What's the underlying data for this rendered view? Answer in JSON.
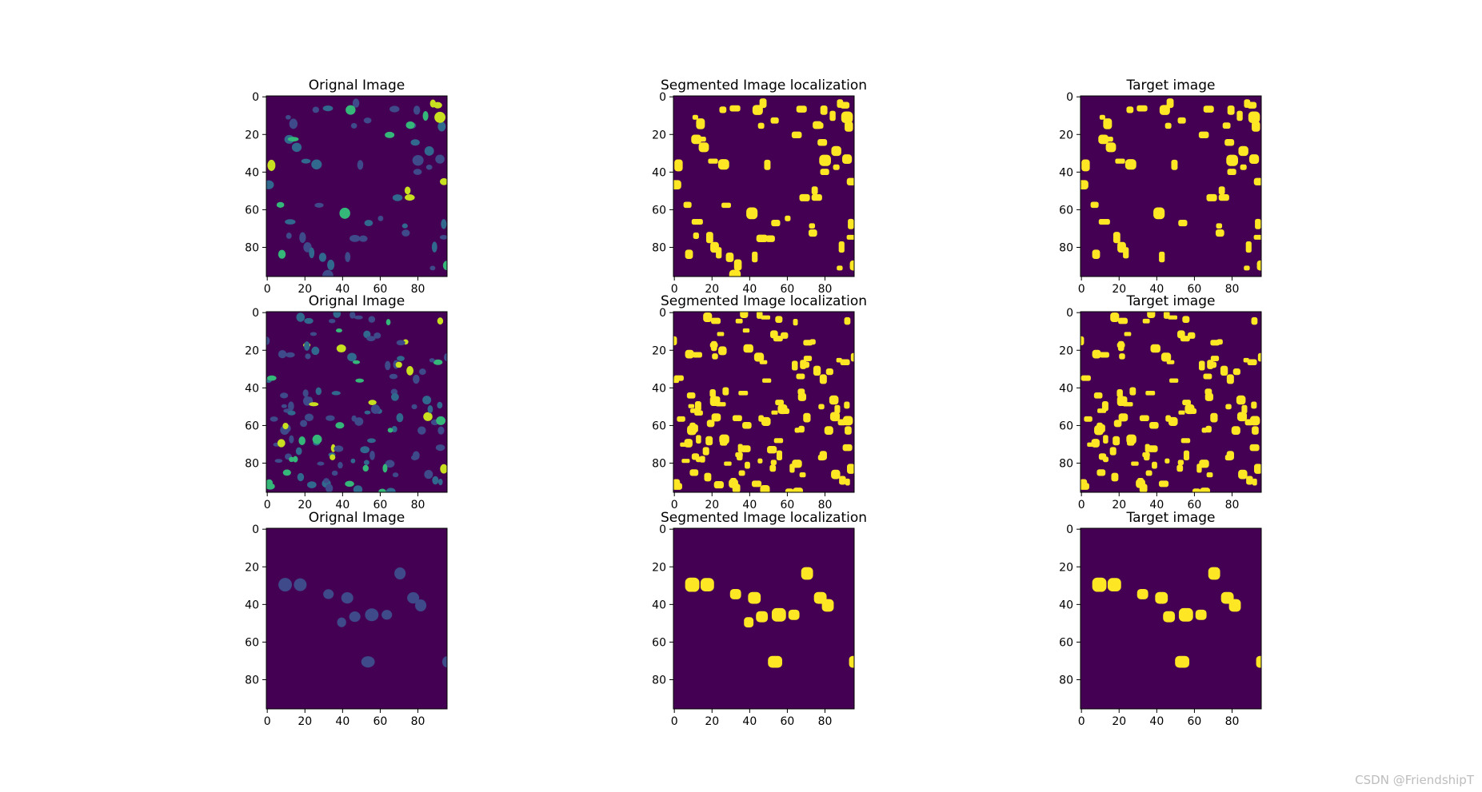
{
  "figure": {
    "rows": 3,
    "columns": 3,
    "column_titles": [
      "Orignal Image",
      "Segmented Image localization",
      "Target image"
    ],
    "axis_range": [
      0,
      96
    ],
    "x_ticks": [
      "0",
      "20",
      "40",
      "60",
      "80"
    ],
    "y_ticks": [
      "0",
      "20",
      "40",
      "60",
      "80"
    ],
    "colors": {
      "background": "#440154",
      "original_low": "#3e4a89",
      "original_mid": "#31688e",
      "original_high": "#35b779",
      "original_peak": "#c8e020",
      "mask": "#fde725"
    }
  },
  "watermark": "CSDN @FriendshipT"
}
